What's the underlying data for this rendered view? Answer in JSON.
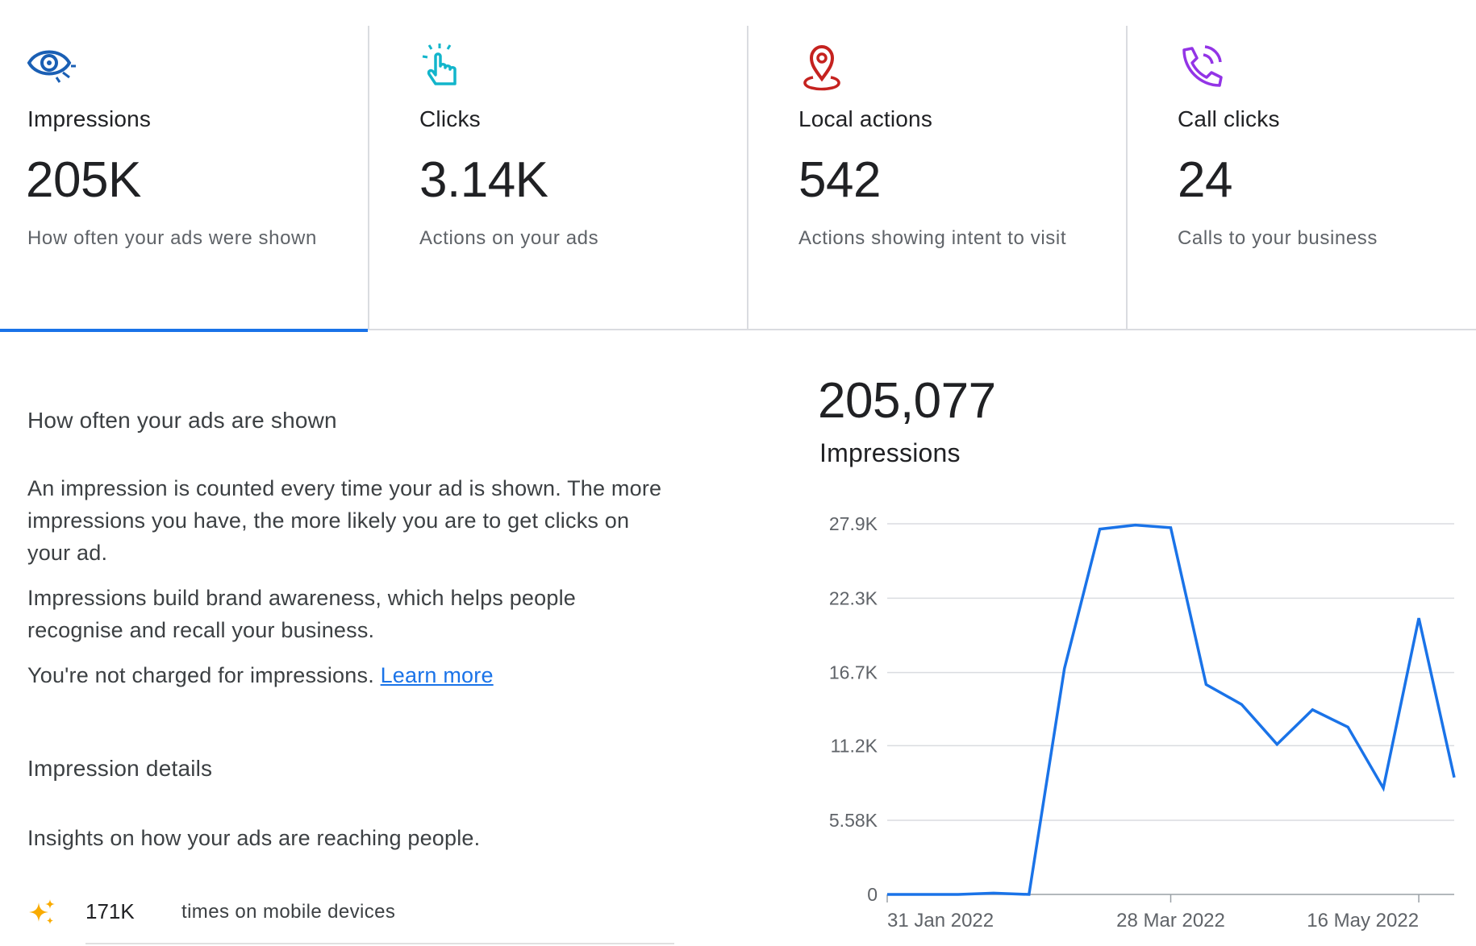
{
  "colors": {
    "accent": "#1a73e8",
    "impressions_icon": "#1a5fb4",
    "clicks_icon": "#12b5cb",
    "local_icon": "#c5221f",
    "call_icon": "#9334e6",
    "spark_icon": "#f9ab00"
  },
  "cards": [
    {
      "label": "Impressions",
      "value": "205K",
      "desc": "How often your ads were shown",
      "icon": "eye-icon",
      "selected": true
    },
    {
      "label": "Clicks",
      "value": "3.14K",
      "desc": "Actions on your ads",
      "icon": "tap-icon",
      "selected": false
    },
    {
      "label": "Local actions",
      "value": "542",
      "desc": "Actions showing intent to visit",
      "icon": "location-pin-icon",
      "selected": false
    },
    {
      "label": "Call clicks",
      "value": "24",
      "desc": "Calls to your business",
      "icon": "phone-call-icon",
      "selected": false
    }
  ],
  "info": {
    "heading": "How often your ads are shown",
    "para1": "An impression is counted every time your ad is shown. The more impressions you have, the more likely you are to get clicks on your ad.",
    "para2": "Impressions build brand awareness, which helps people recognise and recall your business.",
    "para3": "You're not charged for impressions.",
    "learn_more": "Learn more",
    "details_heading": "Impression details",
    "details_sub": "Insights on how your ads are reaching people.",
    "detail_row": {
      "value": "171K",
      "label": "times on mobile devices",
      "icon": "sparkle-icon"
    }
  },
  "total": {
    "value": "205,077",
    "label": "Impressions"
  },
  "chart_data": {
    "type": "line",
    "title": "",
    "xlabel": "",
    "ylabel": "",
    "y_ticks": [
      "0",
      "5.58K",
      "11.2K",
      "16.7K",
      "22.3K",
      "27.9K"
    ],
    "y_tick_values": [
      0,
      5580,
      11200,
      16700,
      22300,
      27900
    ],
    "ylim": [
      0,
      27900
    ],
    "x_tick_labels": [
      "31 Jan 2022",
      "28 Mar 2022",
      "16 May 2022"
    ],
    "x_tick_indices": [
      0,
      8,
      15
    ],
    "grid": true,
    "series": [
      {
        "values": [
          0,
          0,
          0,
          100,
          0,
          17000,
          27500,
          27800,
          27600,
          15800,
          14300,
          11300,
          13900,
          12600,
          8000,
          20800,
          8800
        ]
      }
    ]
  }
}
